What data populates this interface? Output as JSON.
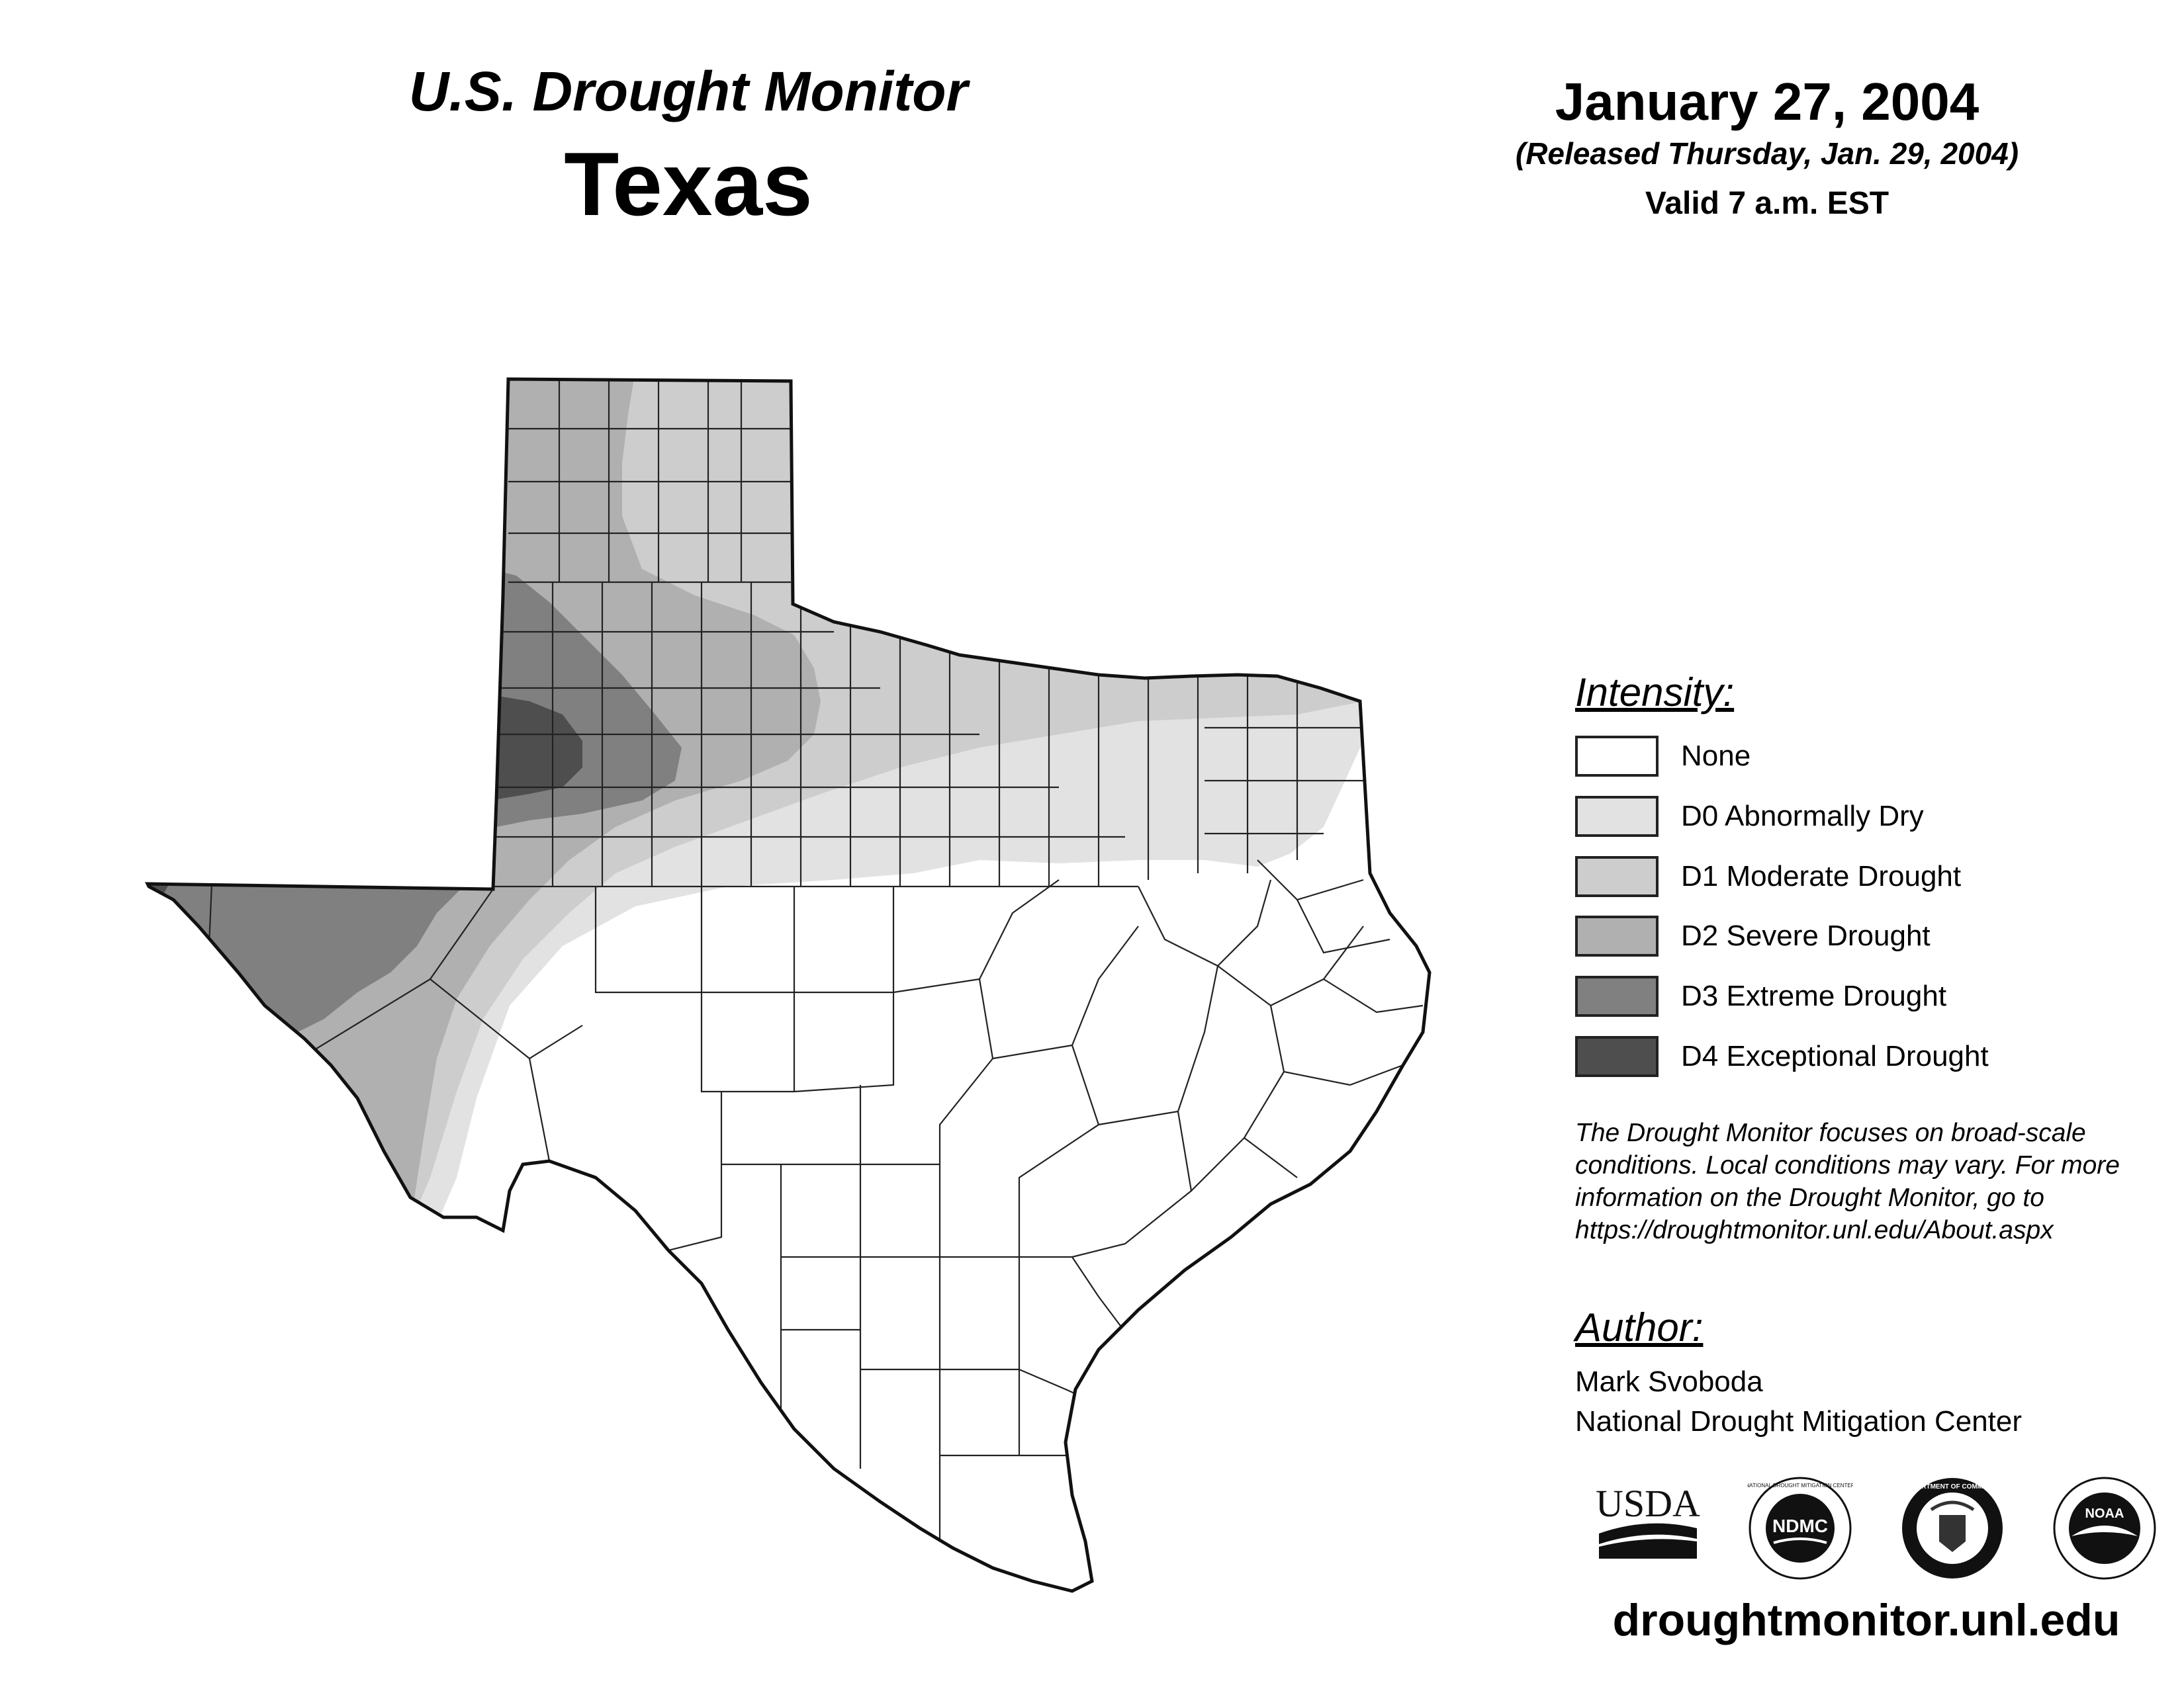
{
  "header": {
    "title": "U.S. Drought Monitor",
    "state": "Texas",
    "date": "January 27, 2004",
    "released": "(Released Thursday, Jan. 29, 2004)",
    "valid": "Valid 7 a.m. EST"
  },
  "legend": {
    "heading": "Intensity:",
    "items": [
      {
        "label": "None",
        "color": "#ffffff"
      },
      {
        "label": "D0 Abnormally Dry",
        "color": "#e2e2e2"
      },
      {
        "label": "D1 Moderate Drought",
        "color": "#cdcdcd"
      },
      {
        "label": "D2 Severe Drought",
        "color": "#b0b0b0"
      },
      {
        "label": "D3 Extreme Drought",
        "color": "#808080"
      },
      {
        "label": "D4 Exceptional Drought",
        "color": "#4e4e4e"
      }
    ]
  },
  "note": "The Drought Monitor focuses on broad-scale conditions. Local conditions may vary. For more information on the Drought Monitor, go to https://droughtmonitor.unl.edu/About.aspx",
  "author": {
    "heading": "Author:",
    "name": "Mark Svoboda",
    "org": "National Drought Mitigation Center"
  },
  "logos": {
    "usda": "USDA",
    "ndmc": "NDMC",
    "ndmc_ring": "NATIONAL DROUGHT MITIGATION CENTER",
    "commerce_ring": "DEPARTMENT OF COMMERCE",
    "noaa": "NOAA"
  },
  "url": "droughtmonitor.unl.edu"
}
